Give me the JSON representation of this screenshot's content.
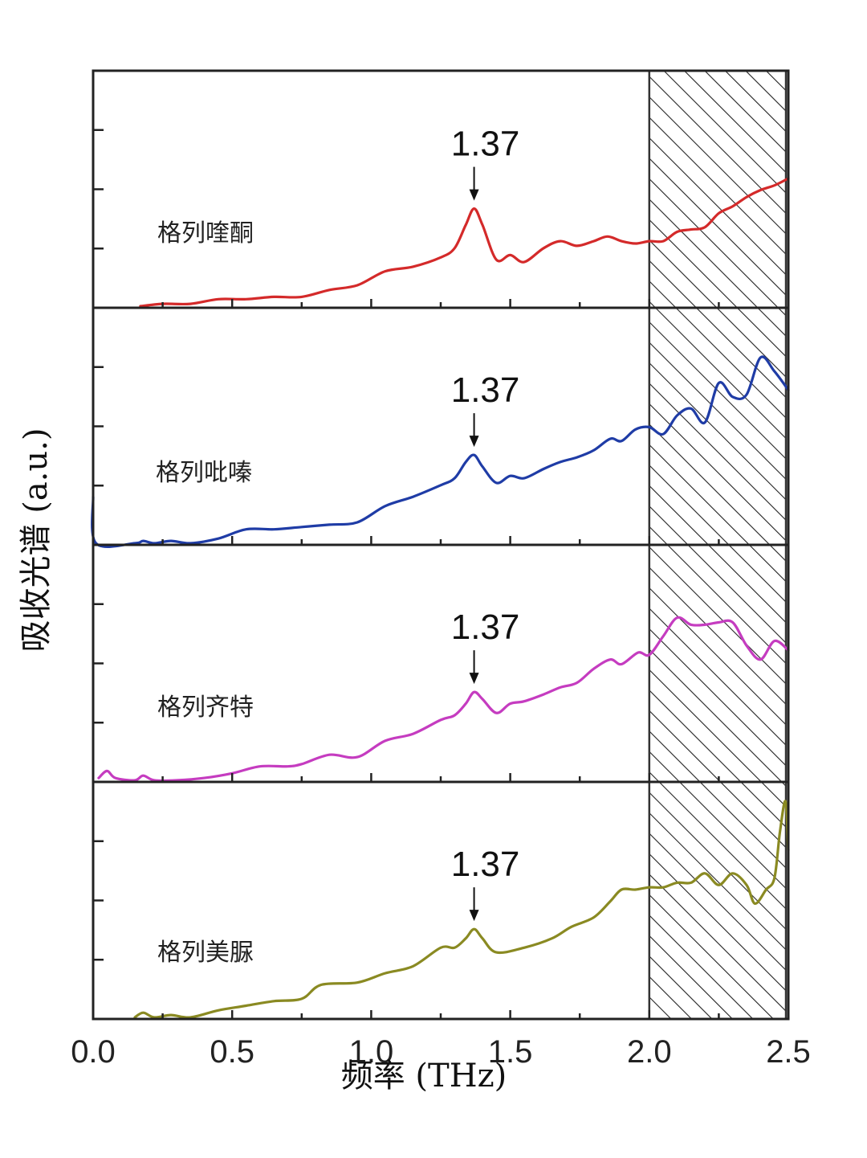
{
  "chart_data": {
    "type": "line",
    "xlabel": "频率 (THz)",
    "ylabel": "吸收光谱 (a.u.)",
    "xlim": [
      0.0,
      2.5
    ],
    "xticks": [
      "0.0",
      "0.5",
      "1.0",
      "1.5",
      "2.0",
      "2.5"
    ],
    "shaded_region": {
      "x_start": 2.0,
      "x_end": 2.5,
      "pattern": "diagonal-hatch"
    },
    "panels": [
      {
        "name": "格列喹酮",
        "color": "#d42a2a",
        "peak_x": 1.37,
        "peak_label": "1.37",
        "points": [
          [
            0.17,
            0.0
          ],
          [
            0.25,
            0.01
          ],
          [
            0.35,
            0.01
          ],
          [
            0.45,
            0.03
          ],
          [
            0.55,
            0.03
          ],
          [
            0.65,
            0.04
          ],
          [
            0.75,
            0.04
          ],
          [
            0.85,
            0.07
          ],
          [
            0.95,
            0.09
          ],
          [
            1.05,
            0.15
          ],
          [
            1.15,
            0.17
          ],
          [
            1.25,
            0.21
          ],
          [
            1.3,
            0.25
          ],
          [
            1.34,
            0.35
          ],
          [
            1.37,
            0.42
          ],
          [
            1.4,
            0.35
          ],
          [
            1.45,
            0.2
          ],
          [
            1.5,
            0.22
          ],
          [
            1.55,
            0.19
          ],
          [
            1.62,
            0.25
          ],
          [
            1.68,
            0.28
          ],
          [
            1.74,
            0.26
          ],
          [
            1.8,
            0.28
          ],
          [
            1.85,
            0.3
          ],
          [
            1.9,
            0.28
          ],
          [
            1.95,
            0.27
          ],
          [
            2.0,
            0.28
          ],
          [
            2.05,
            0.28
          ],
          [
            2.1,
            0.32
          ],
          [
            2.15,
            0.33
          ],
          [
            2.2,
            0.34
          ],
          [
            2.25,
            0.4
          ],
          [
            2.3,
            0.43
          ],
          [
            2.35,
            0.47
          ],
          [
            2.4,
            0.5
          ],
          [
            2.45,
            0.52
          ],
          [
            2.5,
            0.55
          ]
        ]
      },
      {
        "name": "格列吡嗪",
        "color": "#1f3ca6",
        "peak_x": 1.37,
        "peak_label": "1.37",
        "points": [
          [
            0.0,
            0.2
          ],
          [
            0.01,
            0.0
          ],
          [
            0.15,
            0.0
          ],
          [
            0.18,
            0.01
          ],
          [
            0.22,
            0.0
          ],
          [
            0.28,
            0.01
          ],
          [
            0.35,
            0.0
          ],
          [
            0.45,
            0.02
          ],
          [
            0.55,
            0.06
          ],
          [
            0.65,
            0.06
          ],
          [
            0.75,
            0.07
          ],
          [
            0.85,
            0.08
          ],
          [
            0.95,
            0.09
          ],
          [
            1.05,
            0.16
          ],
          [
            1.15,
            0.2
          ],
          [
            1.25,
            0.25
          ],
          [
            1.3,
            0.28
          ],
          [
            1.34,
            0.35
          ],
          [
            1.37,
            0.38
          ],
          [
            1.4,
            0.33
          ],
          [
            1.45,
            0.26
          ],
          [
            1.5,
            0.29
          ],
          [
            1.55,
            0.28
          ],
          [
            1.62,
            0.32
          ],
          [
            1.68,
            0.35
          ],
          [
            1.74,
            0.37
          ],
          [
            1.8,
            0.4
          ],
          [
            1.86,
            0.45
          ],
          [
            1.9,
            0.44
          ],
          [
            1.95,
            0.49
          ],
          [
            2.0,
            0.5
          ],
          [
            2.05,
            0.47
          ],
          [
            2.1,
            0.55
          ],
          [
            2.15,
            0.58
          ],
          [
            2.2,
            0.52
          ],
          [
            2.25,
            0.69
          ],
          [
            2.3,
            0.63
          ],
          [
            2.35,
            0.64
          ],
          [
            2.4,
            0.8
          ],
          [
            2.45,
            0.74
          ],
          [
            2.5,
            0.66
          ]
        ]
      },
      {
        "name": "格列齐特",
        "color": "#c53cc0",
        "peak_x": 1.37,
        "peak_label": "1.37",
        "points": [
          [
            0.02,
            0.01
          ],
          [
            0.05,
            0.04
          ],
          [
            0.08,
            0.01
          ],
          [
            0.15,
            0.0
          ],
          [
            0.18,
            0.02
          ],
          [
            0.22,
            0.0
          ],
          [
            0.3,
            0.0
          ],
          [
            0.4,
            0.01
          ],
          [
            0.5,
            0.03
          ],
          [
            0.6,
            0.06
          ],
          [
            0.7,
            0.06
          ],
          [
            0.75,
            0.07
          ],
          [
            0.85,
            0.11
          ],
          [
            0.95,
            0.1
          ],
          [
            1.05,
            0.17
          ],
          [
            1.15,
            0.2
          ],
          [
            1.25,
            0.26
          ],
          [
            1.3,
            0.28
          ],
          [
            1.34,
            0.33
          ],
          [
            1.37,
            0.38
          ],
          [
            1.4,
            0.35
          ],
          [
            1.45,
            0.29
          ],
          [
            1.5,
            0.33
          ],
          [
            1.55,
            0.34
          ],
          [
            1.62,
            0.37
          ],
          [
            1.68,
            0.4
          ],
          [
            1.74,
            0.42
          ],
          [
            1.8,
            0.48
          ],
          [
            1.86,
            0.52
          ],
          [
            1.9,
            0.5
          ],
          [
            1.96,
            0.55
          ],
          [
            2.0,
            0.54
          ],
          [
            2.05,
            0.62
          ],
          [
            2.1,
            0.7
          ],
          [
            2.15,
            0.67
          ],
          [
            2.2,
            0.67
          ],
          [
            2.25,
            0.68
          ],
          [
            2.3,
            0.68
          ],
          [
            2.35,
            0.58
          ],
          [
            2.4,
            0.52
          ],
          [
            2.45,
            0.6
          ],
          [
            2.5,
            0.56
          ]
        ]
      },
      {
        "name": "格列美脲",
        "color": "#8a8a22",
        "peak_x": 1.37,
        "peak_label": "1.37",
        "points": [
          [
            0.15,
            0.0
          ],
          [
            0.18,
            0.02
          ],
          [
            0.22,
            0.0
          ],
          [
            0.28,
            0.01
          ],
          [
            0.35,
            0.0
          ],
          [
            0.45,
            0.03
          ],
          [
            0.55,
            0.05
          ],
          [
            0.65,
            0.07
          ],
          [
            0.75,
            0.08
          ],
          [
            0.82,
            0.14
          ],
          [
            0.95,
            0.15
          ],
          [
            1.05,
            0.19
          ],
          [
            1.15,
            0.22
          ],
          [
            1.25,
            0.3
          ],
          [
            1.3,
            0.3
          ],
          [
            1.34,
            0.34
          ],
          [
            1.37,
            0.38
          ],
          [
            1.4,
            0.34
          ],
          [
            1.45,
            0.28
          ],
          [
            1.55,
            0.3
          ],
          [
            1.65,
            0.34
          ],
          [
            1.72,
            0.39
          ],
          [
            1.8,
            0.43
          ],
          [
            1.86,
            0.5
          ],
          [
            1.9,
            0.55
          ],
          [
            1.95,
            0.55
          ],
          [
            2.0,
            0.56
          ],
          [
            2.05,
            0.56
          ],
          [
            2.1,
            0.58
          ],
          [
            2.15,
            0.58
          ],
          [
            2.2,
            0.62
          ],
          [
            2.25,
            0.57
          ],
          [
            2.3,
            0.62
          ],
          [
            2.35,
            0.57
          ],
          [
            2.38,
            0.49
          ],
          [
            2.42,
            0.55
          ],
          [
            2.45,
            0.6
          ],
          [
            2.47,
            0.8
          ],
          [
            2.49,
            0.93
          ],
          [
            2.5,
            0.72
          ]
        ]
      }
    ]
  }
}
